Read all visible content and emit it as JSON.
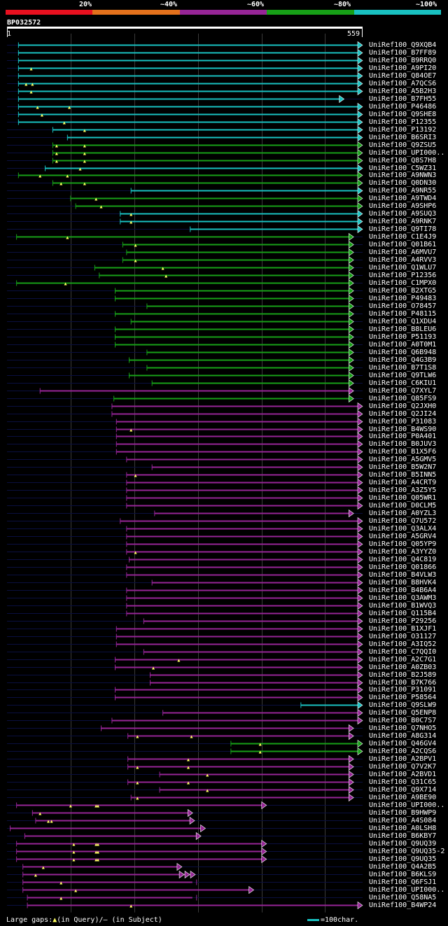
{
  "legend": {
    "labels": [
      "20%",
      "~40%",
      "~60%",
      "~80%",
      "~100%"
    ],
    "colors": [
      "#e8101f",
      "#e3711c",
      "#962596",
      "#17a017",
      "#19c1c1"
    ]
  },
  "query": {
    "title": "BP032572",
    "start": "1",
    "end": "559",
    "length": 559
  },
  "footer": {
    "large_gaps": "Large gaps:",
    "in_query": "(in Query)/",
    "in_subject": "– (in Subject)",
    "scale": "=100char."
  },
  "hits": [
    {
      "label": "UniRef100_Q9XQB4",
      "color": "cyan",
      "start": 18,
      "end": 559,
      "end_shape": "arrow",
      "ins": []
    },
    {
      "label": "UniRef100_B7FF89",
      "color": "cyan",
      "start": 18,
      "end": 559,
      "end_shape": "arrow",
      "ins": []
    },
    {
      "label": "UniRef100_B9RRQ0",
      "color": "cyan",
      "start": 18,
      "end": 559,
      "end_shape": "arrow",
      "ins": []
    },
    {
      "label": "UniRef100_A9PI20",
      "color": "cyan",
      "start": 18,
      "end": 559,
      "end_shape": "arrow",
      "ins": [
        38
      ]
    },
    {
      "label": "UniRef100_Q84OE7",
      "color": "cyan",
      "start": 18,
      "end": 559,
      "end_shape": "arrow",
      "ins": []
    },
    {
      "label": "UniRef100_A7QCS6",
      "color": "cyan",
      "start": 18,
      "end": 559,
      "end_shape": "arrow",
      "ins": [
        30,
        40
      ]
    },
    {
      "label": "UniRef100_A5B2H3",
      "color": "cyan",
      "start": 18,
      "end": 559,
      "end_shape": "arrow",
      "ins": [
        38
      ]
    },
    {
      "label": "UniRef100_B7FH55",
      "color": "cyan",
      "start": 18,
      "end": 530,
      "end_shape": "arrow",
      "ins": []
    },
    {
      "label": "UniRef100_P46486",
      "color": "cyan",
      "start": 18,
      "end": 559,
      "end_shape": "arrow",
      "ins": [
        48,
        98
      ]
    },
    {
      "label": "UniRef100_Q9SHE8",
      "color": "cyan",
      "start": 18,
      "end": 559,
      "end_shape": "arrow",
      "ins": [
        55
      ]
    },
    {
      "label": "UniRef100_P12355",
      "color": "cyan",
      "start": 18,
      "end": 559,
      "end_shape": "arrow",
      "ins": [
        90
      ]
    },
    {
      "label": "UniRef100_P13192",
      "color": "cyan",
      "start": 72,
      "end": 559,
      "end_shape": "arrow",
      "ins": [
        122
      ]
    },
    {
      "label": "UniRef100_B6SRI3",
      "color": "cyan",
      "start": 95,
      "end": 559,
      "end_shape": "arrow",
      "ins": []
    },
    {
      "label": "UniRef100_Q9ZSU5",
      "color": "green",
      "start": 72,
      "end": 559,
      "end_shape": "arrow",
      "ins": [
        78,
        122
      ]
    },
    {
      "label": "UniRef100_UPI000..",
      "color": "green",
      "start": 72,
      "end": 559,
      "end_shape": "arrow",
      "ins": [
        78,
        122
      ]
    },
    {
      "label": "UniRef100_Q8S7H8",
      "color": "green",
      "start": 72,
      "end": 559,
      "end_shape": "arrow",
      "ins": [
        78,
        122
      ]
    },
    {
      "label": "UniRef100_C5WZ31",
      "color": "cyan",
      "start": 60,
      "end": 559,
      "end_shape": "arrow",
      "ins": [
        115
      ]
    },
    {
      "label": "UniRef100_A9NWN3",
      "color": "green",
      "start": 18,
      "end": 559,
      "end_shape": "arrow",
      "ins": [
        52,
        95
      ]
    },
    {
      "label": "UniRef100_Q0DN30",
      "color": "green",
      "start": 72,
      "end": 559,
      "end_shape": "arrow",
      "ins": [
        85,
        122
      ]
    },
    {
      "label": "UniRef100_A9NR55",
      "color": "cyan",
      "start": 195,
      "end": 559,
      "end_shape": "arrow",
      "ins": []
    },
    {
      "label": "UniRef100_A9TWD4",
      "color": "green",
      "start": 100,
      "end": 559,
      "end_shape": "arrow",
      "ins": [
        140
      ]
    },
    {
      "label": "UniRef100_A9SHP6",
      "color": "green",
      "start": 108,
      "end": 559,
      "end_shape": "arrow",
      "ins": [
        148
      ]
    },
    {
      "label": "UniRef100_A9SUQ3",
      "color": "cyan",
      "start": 178,
      "end": 559,
      "end_shape": "arrow",
      "ins": [
        195
      ]
    },
    {
      "label": "UniRef100_A9RNK7",
      "color": "cyan",
      "start": 178,
      "end": 559,
      "end_shape": "arrow",
      "ins": [
        195
      ]
    },
    {
      "label": "UniRef100_Q9TI78",
      "color": "cyan",
      "start": 288,
      "end": 559,
      "end_shape": "arrow",
      "ins": []
    },
    {
      "label": "UniRef100_C1E4J9",
      "color": "green",
      "start": 15,
      "end": 545,
      "end_shape": "arrow",
      "ins": [
        95
      ]
    },
    {
      "label": "UniRef100_Q01B61",
      "color": "green",
      "start": 182,
      "end": 545,
      "end_shape": "arrow",
      "ins": [
        202
      ]
    },
    {
      "label": "UniRef100_A6MVU7",
      "color": "green",
      "start": 188,
      "end": 545,
      "end_shape": "arrow",
      "ins": []
    },
    {
      "label": "UniRef100_A4RVV3",
      "color": "green",
      "start": 182,
      "end": 545,
      "end_shape": "arrow",
      "ins": [
        202
      ]
    },
    {
      "label": "UniRef100_Q1WLU7",
      "color": "green",
      "start": 138,
      "end": 545,
      "end_shape": "arrow",
      "ins": [
        245
      ]
    },
    {
      "label": "UniRef100_P12356",
      "color": "green",
      "start": 145,
      "end": 545,
      "end_shape": "arrow",
      "ins": [
        250
      ]
    },
    {
      "label": "UniRef100_C1MPX0",
      "color": "green",
      "start": 15,
      "end": 545,
      "end_shape": "arrow",
      "ins": [
        92
      ]
    },
    {
      "label": "UniRef100_B2XTG5",
      "color": "green",
      "start": 170,
      "end": 545,
      "end_shape": "arrow",
      "ins": []
    },
    {
      "label": "UniRef100_P49483",
      "color": "green",
      "start": 170,
      "end": 545,
      "end_shape": "arrow",
      "ins": []
    },
    {
      "label": "UniRef100_O78457",
      "color": "green",
      "start": 220,
      "end": 545,
      "end_shape": "arrow",
      "ins": []
    },
    {
      "label": "UniRef100_P48115",
      "color": "green",
      "start": 170,
      "end": 545,
      "end_shape": "arrow",
      "ins": []
    },
    {
      "label": "UniRef100_Q1XDU4",
      "color": "green",
      "start": 195,
      "end": 545,
      "end_shape": "arrow",
      "ins": []
    },
    {
      "label": "UniRef100_B8LEU6",
      "color": "green",
      "start": 170,
      "end": 545,
      "end_shape": "arrow",
      "ins": []
    },
    {
      "label": "UniRef100_P51193",
      "color": "green",
      "start": 170,
      "end": 545,
      "end_shape": "arrow",
      "ins": []
    },
    {
      "label": "UniRef100_A0T0M1",
      "color": "green",
      "start": 170,
      "end": 545,
      "end_shape": "arrow",
      "ins": []
    },
    {
      "label": "UniRef100_Q6B948",
      "color": "green",
      "start": 220,
      "end": 545,
      "end_shape": "arrow",
      "ins": []
    },
    {
      "label": "UniRef100_Q4G3B9",
      "color": "green",
      "start": 192,
      "end": 545,
      "end_shape": "arrow",
      "ins": []
    },
    {
      "label": "UniRef100_B7T1S8",
      "color": "green",
      "start": 220,
      "end": 545,
      "end_shape": "arrow",
      "ins": []
    },
    {
      "label": "UniRef100_Q9TLW6",
      "color": "green",
      "start": 192,
      "end": 545,
      "end_shape": "arrow",
      "ins": []
    },
    {
      "label": "UniRef100_C6KIU1",
      "color": "green",
      "start": 228,
      "end": 545,
      "end_shape": "arrow",
      "ins": []
    },
    {
      "label": "UniRef100_Q7XYL7",
      "color": "purple",
      "start": 52,
      "end": 545,
      "end_shape": "arrow",
      "ins": []
    },
    {
      "label": "UniRef100_Q85FS9",
      "color": "green",
      "start": 168,
      "end": 545,
      "end_shape": "arrow",
      "ins": []
    },
    {
      "label": "UniRef100_Q2JXH0",
      "color": "purple",
      "start": 165,
      "end": 559,
      "end_shape": "arrow",
      "ins": []
    },
    {
      "label": "UniRef100_Q2JI24",
      "color": "purple",
      "start": 165,
      "end": 559,
      "end_shape": "arrow",
      "ins": []
    },
    {
      "label": "UniRef100_P31083",
      "color": "purple",
      "start": 172,
      "end": 559,
      "end_shape": "arrow",
      "ins": []
    },
    {
      "label": "UniRef100_B4WS90",
      "color": "purple",
      "start": 172,
      "end": 559,
      "end_shape": "arrow",
      "ins": [
        195
      ]
    },
    {
      "label": "UniRef100_P0A401",
      "color": "purple",
      "start": 172,
      "end": 559,
      "end_shape": "arrow",
      "ins": []
    },
    {
      "label": "UniRef100_B0JUV3",
      "color": "purple",
      "start": 172,
      "end": 559,
      "end_shape": "arrow",
      "ins": []
    },
    {
      "label": "UniRef100_B1X5F6",
      "color": "purple",
      "start": 172,
      "end": 559,
      "end_shape": "arrow",
      "ins": []
    },
    {
      "label": "UniRef100_A5GMV5",
      "color": "purple",
      "start": 188,
      "end": 559,
      "end_shape": "arrow",
      "ins": []
    },
    {
      "label": "UniRef100_B5W2N7",
      "color": "purple",
      "start": 228,
      "end": 559,
      "end_shape": "arrow",
      "ins": []
    },
    {
      "label": "UniRef100_B5INN5",
      "color": "purple",
      "start": 188,
      "end": 559,
      "end_shape": "arrow",
      "ins": [
        202
      ]
    },
    {
      "label": "UniRef100_A4CRT9",
      "color": "purple",
      "start": 188,
      "end": 559,
      "end_shape": "arrow",
      "ins": []
    },
    {
      "label": "UniRef100_A3Z5Y5",
      "color": "purple",
      "start": 188,
      "end": 559,
      "end_shape": "arrow",
      "ins": []
    },
    {
      "label": "UniRef100_Q05WR1",
      "color": "purple",
      "start": 188,
      "end": 559,
      "end_shape": "arrow",
      "ins": []
    },
    {
      "label": "UniRef100_D0CLM5",
      "color": "purple",
      "start": 188,
      "end": 559,
      "end_shape": "arrow",
      "ins": []
    },
    {
      "label": "UniRef100_A0YZL3",
      "color": "purple",
      "start": 232,
      "end": 545,
      "end_shape": "arrow",
      "ins": []
    },
    {
      "label": "UniRef100_Q7U572",
      "color": "purple",
      "start": 178,
      "end": 559,
      "end_shape": "arrow",
      "ins": []
    },
    {
      "label": "UniRef100_Q3ALX4",
      "color": "purple",
      "start": 188,
      "end": 559,
      "end_shape": "arrow",
      "ins": []
    },
    {
      "label": "UniRef100_A5GRV4",
      "color": "purple",
      "start": 188,
      "end": 559,
      "end_shape": "arrow",
      "ins": []
    },
    {
      "label": "UniRef100_Q05YP9",
      "color": "purple",
      "start": 188,
      "end": 559,
      "end_shape": "arrow",
      "ins": []
    },
    {
      "label": "UniRef100_A3YYZ0",
      "color": "purple",
      "start": 188,
      "end": 559,
      "end_shape": "arrow",
      "ins": [
        202
      ]
    },
    {
      "label": "UniRef100_Q4C819",
      "color": "purple",
      "start": 192,
      "end": 559,
      "end_shape": "arrow",
      "ins": []
    },
    {
      "label": "UniRef100_Q01866",
      "color": "purple",
      "start": 188,
      "end": 559,
      "end_shape": "arrow",
      "ins": []
    },
    {
      "label": "UniRef100_B4VLW3",
      "color": "purple",
      "start": 188,
      "end": 559,
      "end_shape": "arrow",
      "ins": []
    },
    {
      "label": "UniRef100_B8HVK4",
      "color": "purple",
      "start": 228,
      "end": 559,
      "end_shape": "arrow",
      "ins": []
    },
    {
      "label": "UniRef100_B4B6A4",
      "color": "purple",
      "start": 188,
      "end": 559,
      "end_shape": "arrow",
      "ins": []
    },
    {
      "label": "UniRef100_Q3AWM3",
      "color": "purple",
      "start": 188,
      "end": 559,
      "end_shape": "arrow",
      "ins": []
    },
    {
      "label": "UniRef100_B1WVQ3",
      "color": "purple",
      "start": 188,
      "end": 559,
      "end_shape": "arrow",
      "ins": []
    },
    {
      "label": "UniRef100_Q115B4",
      "color": "purple",
      "start": 188,
      "end": 559,
      "end_shape": "arrow",
      "ins": []
    },
    {
      "label": "UniRef100_P29256",
      "color": "purple",
      "start": 215,
      "end": 559,
      "end_shape": "arrow",
      "ins": []
    },
    {
      "label": "UniRef100_B1XJF1",
      "color": "purple",
      "start": 172,
      "end": 559,
      "end_shape": "arrow",
      "ins": []
    },
    {
      "label": "UniRef100_O31127",
      "color": "purple",
      "start": 172,
      "end": 559,
      "end_shape": "arrow",
      "ins": []
    },
    {
      "label": "UniRef100_A3IQ52",
      "color": "purple",
      "start": 172,
      "end": 559,
      "end_shape": "arrow",
      "ins": []
    },
    {
      "label": "UniRef100_C7QQI0",
      "color": "purple",
      "start": 215,
      "end": 559,
      "end_shape": "arrow",
      "ins": []
    },
    {
      "label": "UniRef100_A2C7G1",
      "color": "purple",
      "start": 170,
      "end": 559,
      "end_shape": "arrow",
      "ins": [
        270
      ]
    },
    {
      "label": "UniRef100_A0ZB03",
      "color": "purple",
      "start": 170,
      "end": 559,
      "end_shape": "arrow",
      "ins": [
        230
      ]
    },
    {
      "label": "UniRef100_B2J589",
      "color": "purple",
      "start": 225,
      "end": 559,
      "end_shape": "arrow",
      "ins": []
    },
    {
      "label": "UniRef100_B7K766",
      "color": "purple",
      "start": 225,
      "end": 559,
      "end_shape": "arrow",
      "ins": []
    },
    {
      "label": "UniRef100_P31091",
      "color": "purple",
      "start": 170,
      "end": 559,
      "end_shape": "arrow",
      "ins": []
    },
    {
      "label": "UniRef100_P58564",
      "color": "purple",
      "start": 170,
      "end": 559,
      "end_shape": "arrow",
      "ins": []
    },
    {
      "label": "UniRef100_Q9SLW9",
      "color": "cyan",
      "start": 462,
      "end": 559,
      "end_shape": "arrow",
      "ins": []
    },
    {
      "label": "UniRef100_Q5ENP8",
      "color": "purple",
      "start": 245,
      "end": 559,
      "end_shape": "arrow",
      "ins": []
    },
    {
      "label": "UniRef100_B0C7S7",
      "color": "purple",
      "start": 165,
      "end": 559,
      "end_shape": "arrow",
      "ins": []
    },
    {
      "label": "UniRef100_Q7NHO5",
      "color": "purple",
      "start": 148,
      "end": 545,
      "end_shape": "arrow",
      "ins": []
    },
    {
      "label": "UniRef100_A8G314",
      "color": "purple",
      "start": 190,
      "end": 545,
      "end_shape": "arrow",
      "ins": [
        205,
        290
      ]
    },
    {
      "label": "UniRef100_Q46GV4",
      "color": "green",
      "start": 352,
      "end": 559,
      "end_shape": "arrow",
      "ins": [
        398
      ]
    },
    {
      "label": "UniRef100_A2CQS6",
      "color": "green",
      "start": 352,
      "end": 559,
      "end_shape": "arrow",
      "ins": [
        398
      ]
    },
    {
      "label": "UniRef100_A2BPV1",
      "color": "purple",
      "start": 190,
      "end": 545,
      "end_shape": "arrow",
      "ins": [
        285
      ]
    },
    {
      "label": "UniRef100_Q7V2K7",
      "color": "purple",
      "start": 190,
      "end": 545,
      "end_shape": "arrow",
      "ins": [
        205,
        285
      ]
    },
    {
      "label": "UniRef100_A2BVD1",
      "color": "purple",
      "start": 240,
      "end": 545,
      "end_shape": "arrow",
      "ins": [
        315
      ]
    },
    {
      "label": "UniRef100_Q31C65",
      "color": "purple",
      "start": 190,
      "end": 545,
      "end_shape": "arrow",
      "ins": [
        205,
        285
      ]
    },
    {
      "label": "UniRef100_Q9X714",
      "color": "purple",
      "start": 240,
      "end": 545,
      "end_shape": "arrow",
      "ins": [
        315
      ]
    },
    {
      "label": "UniRef100_A9BE90",
      "color": "purple",
      "start": 195,
      "end": 545,
      "end_shape": "arrow",
      "ins": [
        205
      ]
    },
    {
      "label": "UniRef100_UPI000..",
      "color": "purple",
      "start": 15,
      "end": 408,
      "end_shape": "arrow",
      "ins": [
        100,
        140,
        143
      ]
    },
    {
      "label": "UniRef100_B9HWP9",
      "color": "purple",
      "start": 40,
      "end": 292,
      "end_shape": "arrow",
      "ins": [
        52
      ]
    },
    {
      "label": "UniRef100_A4S084",
      "color": "purple",
      "start": 45,
      "end": 295,
      "end_shape": "arrow",
      "ins": [
        65,
        70
      ]
    },
    {
      "label": "UniRef100_A0LSH8",
      "color": "purple",
      "start": 5,
      "end": 312,
      "end_shape": "arrow",
      "ins": []
    },
    {
      "label": "UniRef100_B6KBY7",
      "color": "purple",
      "start": 28,
      "end": 305,
      "end_shape": "arrow",
      "ins": []
    },
    {
      "label": "UniRef100_Q9UQ39",
      "color": "purple",
      "start": 15,
      "end": 408,
      "end_shape": "arrow",
      "ins": [
        105,
        140,
        143
      ]
    },
    {
      "label": "UniRef100_Q9UQ35-2",
      "color": "purple",
      "start": 15,
      "end": 408,
      "end_shape": "arrow",
      "ins": [
        105,
        140,
        143
      ]
    },
    {
      "label": "UniRef100_Q9UQ35",
      "color": "purple",
      "start": 15,
      "end": 408,
      "end_shape": "arrow",
      "ins": [
        105,
        140,
        143
      ]
    },
    {
      "label": "UniRef100_Q4A2B5",
      "color": "purple",
      "start": 25,
      "end": 275,
      "end_shape": "arrow",
      "ins": [
        57
      ]
    },
    {
      "label": "UniRef100_B6KLS9",
      "color": "purple",
      "start": 25,
      "end": 295,
      "end_shape": "multi",
      "ins": [
        45
      ]
    },
    {
      "label": "UniRef100_Q6FSJ1",
      "color": "purple",
      "start": 25,
      "end": 298,
      "end_shape": "none",
      "ins": [
        85
      ]
    },
    {
      "label": "UniRef100_UPI000..",
      "color": "purple",
      "start": 25,
      "end": 388,
      "end_shape": "arrow",
      "ins": [
        108
      ]
    },
    {
      "label": "UniRef100_Q58NA5",
      "color": "purple",
      "start": 32,
      "end": 298,
      "end_shape": "none",
      "ins": [
        85
      ]
    },
    {
      "label": "UniRef100_B4WP24",
      "color": "purple",
      "start": 32,
      "end": 559,
      "end_shape": "arrow",
      "ins": [
        195
      ]
    }
  ]
}
